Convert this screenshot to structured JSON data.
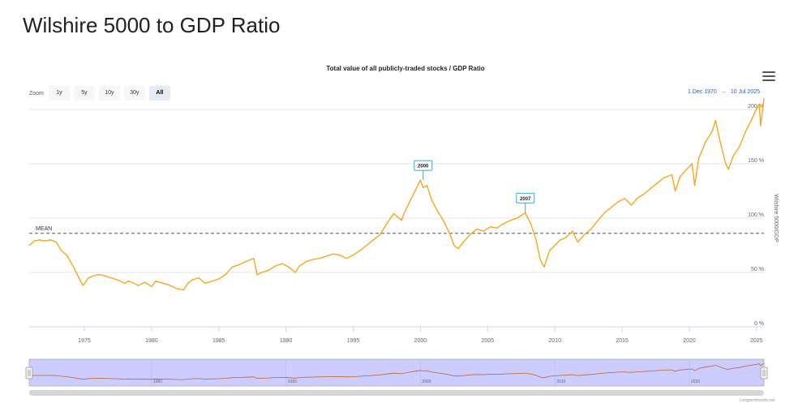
{
  "page": {
    "title": "Wilshire 5000 to GDP Ratio"
  },
  "zoom": {
    "label": "Zoom",
    "buttons": [
      "1y",
      "5y",
      "10y",
      "30y",
      "All"
    ],
    "active": "All"
  },
  "range": {
    "from": "1 Dec 1970",
    "arrow": "→",
    "to": "10 Jul 2025"
  },
  "credit": "Longtermtrends.net",
  "colors": {
    "line": "#f5a623",
    "callout": "#42a5c8",
    "navigator_fill": "#ccccff",
    "navigator_line": "#c0642c",
    "scrollbar": "#d6d6d6"
  },
  "chart_data": {
    "type": "line",
    "title": "Total value of all publicly-traded stocks / GDP Ratio",
    "xlabel": "",
    "ylabel": "Wilshire 5000/GDP",
    "xlim": [
      1970.9,
      2025.55
    ],
    "ylim": [
      0,
      200
    ],
    "yticks": [
      0,
      50,
      100,
      150,
      200
    ],
    "ytick_labels": [
      "0 %",
      "50 %",
      "100 %",
      "150 %",
      "200 %"
    ],
    "xticks": [
      1975,
      1980,
      1985,
      1990,
      1995,
      2000,
      2005,
      2010,
      2015,
      2020,
      2025
    ],
    "mean": {
      "label": "MEAN",
      "value": 86
    },
    "annotations": [
      {
        "label": "2000",
        "x": 2000.2,
        "y": 135
      },
      {
        "label": "2007",
        "x": 2007.8,
        "y": 105
      }
    ],
    "navigator_labels": [
      "1980",
      "1990",
      "2000",
      "2010",
      "2020"
    ],
    "series": [
      {
        "name": "Wilshire 5000/GDP",
        "x": [
          1970.9,
          1971.3,
          1971.7,
          1972.0,
          1972.5,
          1972.9,
          1973.3,
          1973.7,
          1974.2,
          1974.6,
          1974.9,
          1975.3,
          1975.7,
          1976.1,
          1976.5,
          1977.0,
          1977.5,
          1978.0,
          1978.3,
          1978.7,
          1979.0,
          1979.5,
          1980.0,
          1980.3,
          1980.9,
          1981.4,
          1981.9,
          1982.4,
          1982.7,
          1983.0,
          1983.5,
          1984.0,
          1984.5,
          1985.0,
          1985.5,
          1986.0,
          1986.5,
          1987.0,
          1987.6,
          1987.85,
          1988.2,
          1988.7,
          1989.2,
          1989.7,
          1990.2,
          1990.7,
          1991.0,
          1991.5,
          1992.0,
          1992.5,
          1993.0,
          1993.5,
          1994.0,
          1994.5,
          1995.0,
          1995.5,
          1996.0,
          1996.5,
          1997.0,
          1997.5,
          1998.0,
          1998.6,
          1998.8,
          1999.2,
          1999.6,
          2000.0,
          2000.2,
          2000.5,
          2000.8,
          2001.2,
          2001.7,
          2002.2,
          2002.5,
          2002.8,
          2003.2,
          2003.7,
          2004.2,
          2004.7,
          2005.2,
          2005.7,
          2006.2,
          2006.7,
          2007.2,
          2007.8,
          2008.2,
          2008.6,
          2008.9,
          2009.2,
          2009.6,
          2010.0,
          2010.4,
          2010.8,
          2011.3,
          2011.7,
          2012.2,
          2012.7,
          2013.2,
          2013.7,
          2014.2,
          2014.7,
          2015.2,
          2015.7,
          2016.1,
          2016.6,
          2017.1,
          2017.6,
          2018.1,
          2018.7,
          2018.95,
          2019.3,
          2019.8,
          2020.2,
          2020.4,
          2020.7,
          2021.2,
          2021.7,
          2021.95,
          2022.3,
          2022.7,
          2022.9,
          2023.3,
          2023.7,
          2024.2,
          2024.6,
          2024.9,
          2025.2,
          2025.3,
          2025.55
        ],
        "y": [
          75,
          79,
          80,
          79,
          80,
          78,
          70,
          66,
          55,
          45,
          38,
          45,
          47,
          48,
          47,
          45,
          43,
          40,
          42,
          40,
          38,
          41,
          37,
          42,
          40,
          38,
          35,
          34,
          40,
          43,
          45,
          40,
          42,
          44,
          48,
          55,
          57,
          60,
          63,
          48,
          50,
          52,
          56,
          58,
          55,
          50,
          56,
          60,
          62,
          63,
          65,
          67,
          66,
          63,
          66,
          70,
          75,
          80,
          85,
          95,
          104,
          98,
          105,
          115,
          125,
          135,
          128,
          130,
          118,
          108,
          98,
          85,
          75,
          72,
          78,
          85,
          90,
          88,
          92,
          91,
          95,
          98,
          100,
          105,
          95,
          80,
          62,
          55,
          70,
          75,
          80,
          82,
          88,
          78,
          85,
          90,
          98,
          105,
          110,
          115,
          118,
          112,
          118,
          122,
          127,
          132,
          137,
          140,
          125,
          138,
          145,
          150,
          130,
          155,
          170,
          180,
          190,
          170,
          150,
          145,
          158,
          165,
          180,
          190,
          198,
          205,
          185,
          210
        ]
      }
    ]
  }
}
